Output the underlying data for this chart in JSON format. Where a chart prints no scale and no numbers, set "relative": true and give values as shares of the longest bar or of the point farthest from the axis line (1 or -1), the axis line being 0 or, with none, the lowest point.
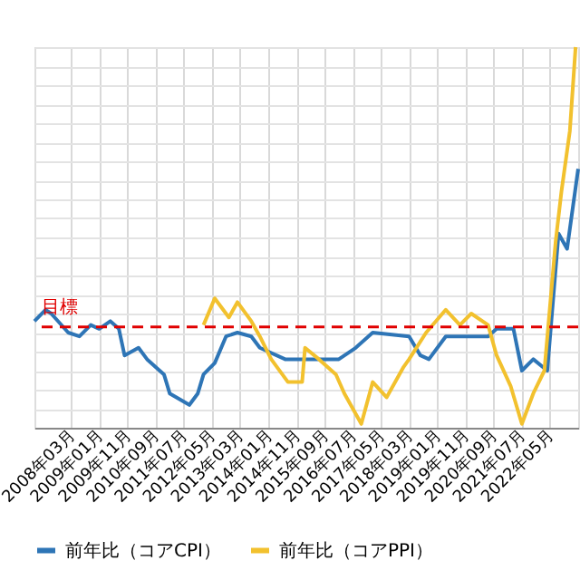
{
  "chart_data": {
    "type": "line",
    "relative": true,
    "xlim": [
      "2007-02",
      "2023-03"
    ],
    "xticks": [
      {
        "value": "2008-03",
        "label": "2008年03月"
      },
      {
        "value": "2009-01",
        "label": "2009年01月"
      },
      {
        "value": "2009-11",
        "label": "2009年11月"
      },
      {
        "value": "2010-09",
        "label": "2010年09月"
      },
      {
        "value": "2011-07",
        "label": "2011年07月"
      },
      {
        "value": "2012-05",
        "label": "2012年05月"
      },
      {
        "value": "2013-03",
        "label": "2013年03月"
      },
      {
        "value": "2014-01",
        "label": "2014年01月"
      },
      {
        "value": "2014-11",
        "label": "2014年11月"
      },
      {
        "value": "2015-09",
        "label": "2015年09月"
      },
      {
        "value": "2016-07",
        "label": "2016年07月"
      },
      {
        "value": "2017-05",
        "label": "2017年05月"
      },
      {
        "value": "2018-03",
        "label": "2018年03月"
      },
      {
        "value": "2019-01",
        "label": "2019年01月"
      },
      {
        "value": "2019-11",
        "label": "2019年11月"
      },
      {
        "value": "2020-09",
        "label": "2020年09月"
      },
      {
        "value": "2021-07",
        "label": "2021年07月"
      },
      {
        "value": "2022-05",
        "label": "2022年05月"
      }
    ],
    "series": [
      {
        "name": "前年比（コアCPI）",
        "color": "#2e75b6",
        "x": [
          "2007-02",
          "2007-06",
          "2007-08",
          "2008-02",
          "2008-06",
          "2008-10",
          "2009-01",
          "2009-05",
          "2009-08",
          "2009-10",
          "2010-03",
          "2010-06",
          "2010-12",
          "2011-02",
          "2011-09",
          "2011-12",
          "2012-02",
          "2012-06",
          "2012-10",
          "2013-02",
          "2013-07",
          "2013-10",
          "2014-07",
          "2015-01",
          "2015-02",
          "2016-02",
          "2016-08",
          "2017-02",
          "2018-03",
          "2018-07",
          "2018-10",
          "2019-04",
          "2019-10",
          "2020-07",
          "2020-10",
          "2021-04",
          "2021-07",
          "2021-11",
          "2022-04",
          "2022-08",
          "2022-11",
          "2023-03"
        ],
        "values": [
          0.28,
          0.31,
          0.3,
          0.25,
          0.24,
          0.27,
          0.26,
          0.28,
          0.26,
          0.19,
          0.21,
          0.18,
          0.14,
          0.09,
          0.06,
          0.09,
          0.14,
          0.17,
          0.24,
          0.25,
          0.24,
          0.21,
          0.18,
          0.18,
          0.18,
          0.18,
          0.21,
          0.25,
          0.24,
          0.19,
          0.18,
          0.24,
          0.24,
          0.24,
          0.26,
          0.26,
          0.15,
          0.18,
          0.15,
          0.51,
          0.47,
          0.68
        ]
      },
      {
        "name": "前年比（コアPPI）",
        "color": "#f2c12e",
        "x": [
          "2012-02",
          "2012-06",
          "2012-11",
          "2013-02",
          "2013-07",
          "2013-10",
          "2014-02",
          "2014-08",
          "2015-01",
          "2015-02",
          "2015-07",
          "2016-01",
          "2016-04",
          "2016-10",
          "2017-02",
          "2017-07",
          "2018-01",
          "2018-03",
          "2018-09",
          "2019-04",
          "2019-09",
          "2020-01",
          "2020-07",
          "2020-10",
          "2021-03",
          "2021-07",
          "2021-11",
          "2022-03",
          "2022-07",
          "2022-09",
          "2022-12",
          "2023-02"
        ],
        "values": [
          0.27,
          0.34,
          0.29,
          0.33,
          0.28,
          0.24,
          0.18,
          0.12,
          0.12,
          0.21,
          0.18,
          0.14,
          0.09,
          0.01,
          0.12,
          0.08,
          0.16,
          0.18,
          0.25,
          0.31,
          0.27,
          0.3,
          0.27,
          0.19,
          0.11,
          0.01,
          0.09,
          0.15,
          0.49,
          0.62,
          0.78,
          1
        ]
      }
    ],
    "ref_lines": [
      {
        "axis": "y",
        "value": 0.265,
        "label": "目標",
        "color": "#e00000",
        "line_style": "dashed"
      }
    ],
    "grid": true,
    "legend": "bottom",
    "line_style": "solid",
    "marker": "none"
  }
}
